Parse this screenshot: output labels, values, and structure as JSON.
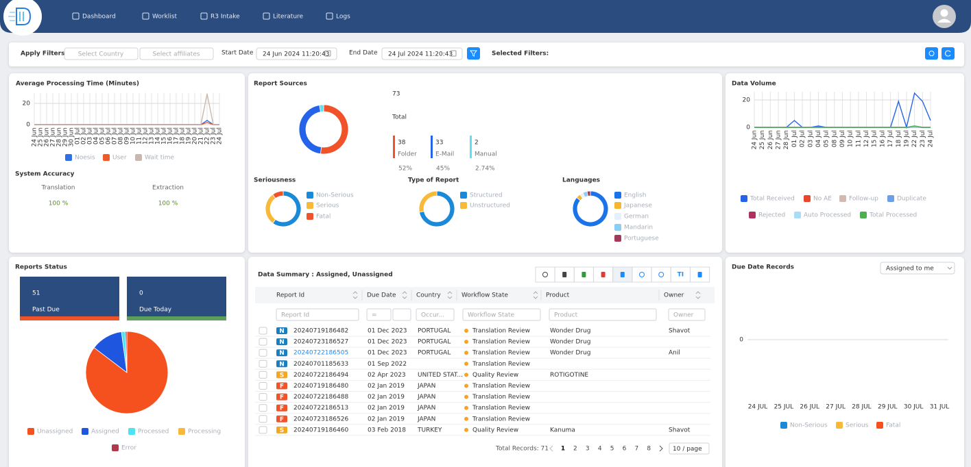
{
  "nav": {
    "items": [
      "Dashboard",
      "Worklist",
      "R3 Intake",
      "Literature",
      "Logs"
    ]
  },
  "filters": {
    "label": "Apply Filters:",
    "country": "Select Country",
    "affiliates": "Select affiliates",
    "start_label": "Start Date",
    "start": "24 Jun 2024 11:20:43",
    "end_label": "End Date",
    "end": "24 Jul 2024 11:20:43",
    "selected": "Selected Filters:"
  },
  "processing_time": {
    "type": "line",
    "title": "Average Processing Time (Minutes)",
    "categories": [
      "24 Jun",
      "25 Jun",
      "26 Jun",
      "27 Jun",
      "28 Jun",
      "29 Jun",
      "30 Jun",
      "01 Jul",
      "02 Jul",
      "03 Jul",
      "04 Jul",
      "05 Jul",
      "06 Jul",
      "07 Jul",
      "08 Jul",
      "09 Jul",
      "10 Jul",
      "11 Jul",
      "12 Jul",
      "13 Jul",
      "14 Jul",
      "15 Jul",
      "16 Jul",
      "17 Jul",
      "18 Jul",
      "19 Jul",
      "20 Jul",
      "21 Jul",
      "22 Jul",
      "23 Jul",
      "24 Jul"
    ],
    "ylim": [
      0,
      30
    ],
    "yticks": [
      0,
      20
    ],
    "series": [
      {
        "name": "Noesis",
        "color": "#2f6fe8",
        "values": [
          0,
          0,
          0,
          0,
          0,
          0,
          0,
          0,
          0,
          0,
          0,
          0,
          0,
          0,
          0,
          0,
          0,
          0,
          0,
          0,
          0,
          0,
          0,
          0,
          0,
          0,
          0,
          0,
          4,
          0,
          0
        ]
      },
      {
        "name": "User",
        "color": "#ef5a2a",
        "values": [
          0,
          0,
          0,
          0,
          0,
          0,
          0,
          0,
          0,
          0,
          0,
          0,
          0,
          0,
          0,
          0,
          0,
          0,
          0,
          0,
          0,
          0,
          0,
          0,
          0,
          0,
          0,
          0,
          2,
          0,
          0
        ]
      },
      {
        "name": "Wait time",
        "color": "#c8b8b0",
        "values": [
          0,
          0,
          0,
          0,
          0,
          0,
          0,
          0,
          0,
          0,
          0,
          0,
          0,
          0,
          0,
          0,
          0,
          0,
          0,
          0,
          0,
          0,
          0,
          0,
          0,
          0,
          0,
          0,
          29,
          0,
          0
        ]
      }
    ]
  },
  "accuracy": {
    "title": "System Accuracy",
    "items": [
      {
        "label": "Translation",
        "value": "100 %"
      },
      {
        "label": "Extraction",
        "value": "100 %"
      }
    ]
  },
  "report_sources": {
    "type": "donut",
    "title": "Report Sources",
    "total": 73,
    "total_label": "Total",
    "items": [
      {
        "name": "Folder",
        "value": 38,
        "percent": "52%",
        "color": "#f0522a"
      },
      {
        "name": "E-Mail",
        "value": 33,
        "percent": "45%",
        "color": "#2563eb"
      },
      {
        "name": "Manual",
        "value": 2,
        "percent": "2.74%",
        "color": "#5ee0f0"
      }
    ]
  },
  "seriousness": {
    "type": "donut",
    "title": "Seriousness",
    "items": [
      {
        "name": "Non-Serious",
        "value": 60,
        "color": "#1a8ad8"
      },
      {
        "name": "Serious",
        "value": 30,
        "color": "#f8b939"
      },
      {
        "name": "Fatal",
        "value": 10,
        "color": "#f0522a"
      }
    ]
  },
  "report_type": {
    "type": "donut",
    "title": "Type of Report",
    "items": [
      {
        "name": "Structured",
        "value": 72,
        "color": "#1a8ad8"
      },
      {
        "name": "Unstructured",
        "value": 28,
        "color": "#f8b939"
      }
    ]
  },
  "languages": {
    "type": "donut",
    "title": "Languages",
    "items": [
      {
        "name": "English",
        "value": 86,
        "color": "#1a73e8"
      },
      {
        "name": "Japanese",
        "value": 4,
        "color": "#f5b731"
      },
      {
        "name": "German",
        "value": 3,
        "color": "#e4f0fb"
      },
      {
        "name": "Mandarin",
        "value": 4,
        "color": "#8ccdf5"
      },
      {
        "name": "Portuguese",
        "value": 3,
        "color": "#a23a5a"
      }
    ]
  },
  "data_volume": {
    "type": "line",
    "title": "Data Volume",
    "categories": [
      "24 Jun",
      "25 Jun",
      "26 Jun",
      "27 Jun",
      "28 Jun",
      "01 Jul",
      "02 Jul",
      "03 Jul",
      "04 Jul",
      "05 Jul",
      "08 Jul",
      "09 Jul",
      "10 Jul",
      "11 Jul",
      "12 Jul",
      "15 Jul",
      "16 Jul",
      "17 Jul",
      "18 Jul",
      "19 Jul",
      "22 Jul",
      "23 Jul",
      "24 Jul"
    ],
    "ylim": [
      0,
      26
    ],
    "yticks": [
      0,
      20
    ],
    "series": [
      {
        "name": "Total Received",
        "color": "#2563eb",
        "values": [
          0,
          0,
          0,
          0,
          0,
          5,
          0,
          0,
          1,
          0,
          0,
          0,
          0,
          0,
          0,
          0,
          0,
          0,
          19,
          0,
          25,
          19,
          5
        ]
      },
      {
        "name": "No AE",
        "color": "#e8472a",
        "values": [
          0,
          0,
          0,
          0,
          0,
          0,
          0,
          0,
          0,
          0,
          0,
          0,
          0,
          0,
          0,
          0,
          0,
          0,
          0,
          0,
          0,
          0,
          0
        ]
      },
      {
        "name": "Follow-up",
        "color": "#d4b9b0",
        "values": [
          0,
          0,
          0,
          0,
          0,
          0,
          0,
          0,
          0,
          0,
          0,
          0,
          0,
          0,
          0,
          0,
          0,
          0,
          0,
          0,
          0,
          0,
          0
        ]
      },
      {
        "name": "Duplicate",
        "color": "#6d9eeb",
        "values": [
          0,
          0,
          0,
          0,
          0,
          0,
          0,
          0,
          0,
          0,
          0,
          0,
          0,
          0,
          0,
          0,
          0,
          0,
          0,
          0,
          1,
          0,
          0
        ]
      },
      {
        "name": "Rejected",
        "color": "#b03060",
        "values": [
          0,
          0,
          0,
          0,
          0,
          0,
          0,
          0,
          0,
          0,
          0,
          0,
          0,
          0,
          0,
          0,
          0,
          0,
          0,
          0,
          0,
          0,
          0
        ]
      },
      {
        "name": "Auto Processed",
        "color": "#a8ddf5",
        "values": [
          0,
          0,
          0,
          0,
          0,
          0,
          0,
          0,
          0,
          0,
          0,
          0,
          0,
          0,
          0,
          0,
          0,
          0,
          0,
          0,
          0,
          0,
          0
        ]
      },
      {
        "name": "Total Processed",
        "color": "#4caf50",
        "values": [
          0,
          0,
          0,
          0,
          0,
          0,
          0,
          0,
          0,
          0,
          0,
          0,
          0,
          0,
          0,
          0,
          0,
          0,
          0,
          0,
          1,
          0,
          0
        ]
      }
    ]
  },
  "reports_status": {
    "title": "Reports Status",
    "tiles": [
      {
        "value": 51,
        "label": "Past Due",
        "color": "#f0522a"
      },
      {
        "value": 0,
        "label": "Due Today",
        "color": "#5aa05a"
      }
    ],
    "pie": {
      "type": "pie",
      "items": [
        {
          "name": "Unassigned",
          "value": 85,
          "color": "#f4511e"
        },
        {
          "name": "Assigned",
          "value": 12.5,
          "color": "#1e56e0"
        },
        {
          "name": "Processed",
          "value": 1.5,
          "color": "#4de3f0"
        },
        {
          "name": "Processing",
          "value": 0,
          "color": "#f8b939"
        },
        {
          "name": "Error",
          "value": 0.6,
          "color": "#b03a4a"
        }
      ]
    }
  },
  "table": {
    "title": "Data Summary : Assigned, Unassigned",
    "tool_text": "TI",
    "columns": [
      "Report Id",
      "Due Date",
      "Country",
      "Workflow State",
      "Product",
      "Owner"
    ],
    "filters": [
      "Report Id",
      "=",
      "Occur...",
      "Workflow State",
      "Product",
      "Owner"
    ],
    "rows": [
      {
        "badge": "N",
        "badge_color": "#1a7fc1",
        "cells": [
          "20240719186482",
          "01 Dec 2023",
          "PORTUGAL",
          "Translation Review",
          "Wonder Drug",
          "Shavot"
        ]
      },
      {
        "badge": "N",
        "badge_color": "#1a7fc1",
        "cells": [
          "20240723186527",
          "01 Dec 2023",
          "PORTUGAL",
          "Translation Review",
          "Wonder Drug",
          null
        ]
      },
      {
        "badge": "N",
        "badge_color": "#1a7fc1",
        "link": true,
        "cells": [
          "20240722186505",
          "01 Dec 2023",
          "PORTUGAL",
          "Translation Review",
          "Wonder Drug",
          "Anil"
        ]
      },
      {
        "badge": "N",
        "badge_color": "#1a7fc1",
        "cells": [
          "20240701185633",
          "01 Sep 2022",
          null,
          "Translation Review",
          null,
          null
        ]
      },
      {
        "badge": "S",
        "badge_color": "#f5a623",
        "cells": [
          "20240722186494",
          "02 Apr 2023",
          "UNITED STAT...",
          "Quality Review",
          "ROTIGOTINE",
          null
        ]
      },
      {
        "badge": "F",
        "badge_color": "#f0522a",
        "cells": [
          "20240719186480",
          "02 Jan 2019",
          "JAPAN",
          "Translation Review",
          null,
          null
        ]
      },
      {
        "badge": "F",
        "badge_color": "#f0522a",
        "cells": [
          "20240722186488",
          "02 Jan 2019",
          "JAPAN",
          "Translation Review",
          null,
          null
        ]
      },
      {
        "badge": "F",
        "badge_color": "#f0522a",
        "cells": [
          "20240722186513",
          "02 Jan 2019",
          "JAPAN",
          "Translation Review",
          null,
          null
        ]
      },
      {
        "badge": "F",
        "badge_color": "#f0522a",
        "cells": [
          "20240723186526",
          "02 Jan 2019",
          "JAPAN",
          "Translation Review",
          null,
          null
        ]
      },
      {
        "badge": "S",
        "badge_color": "#f5a623",
        "cells": [
          "20240719186460",
          "03 Feb 2018",
          "TURKEY",
          "Quality Review",
          "Kanuma",
          "Shavot"
        ]
      }
    ],
    "total": "Total Records: 71",
    "pages": [
      1,
      2,
      3,
      4,
      5,
      6,
      7,
      8
    ],
    "page_size": "10 / page"
  },
  "due_dates": {
    "type": "line",
    "title": "Due Date Records",
    "dropdown": "Assigned to me",
    "categories": [
      "24 JUL",
      "25 JUL",
      "26 JUL",
      "27 JUL",
      "28 JUL",
      "29 JUL",
      "30 JUL",
      "31 JUL"
    ],
    "ylim": [
      -1,
      1
    ],
    "yticks": [
      0
    ],
    "series": [
      {
        "name": "Non-Serious",
        "color": "#1a8ad8",
        "values": [
          null,
          null,
          null,
          null,
          null,
          null,
          null,
          null
        ]
      },
      {
        "name": "Serious",
        "color": "#f8b939",
        "values": [
          null,
          null,
          null,
          null,
          null,
          null,
          null,
          null
        ]
      },
      {
        "name": "Fatal",
        "color": "#f4511e",
        "values": [
          null,
          null,
          null,
          null,
          null,
          null,
          null,
          null
        ]
      }
    ]
  }
}
